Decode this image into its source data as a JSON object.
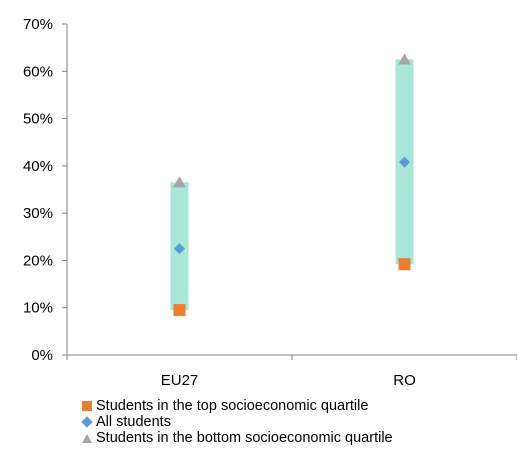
{
  "chart_data": {
    "type": "range",
    "categories": [
      "EU27",
      "RO"
    ],
    "series": [
      {
        "name": "Students in the top socioeconomic quartile",
        "values": [
          9.5,
          19.2
        ],
        "marker": "square",
        "color": "#ED7D31"
      },
      {
        "name": "All students",
        "values": [
          22.5,
          40.8
        ],
        "marker": "diamond",
        "color": "#5B9BD5"
      },
      {
        "name": "Students in the bottom socioeconomic quartile",
        "values": [
          36.5,
          62.5
        ],
        "marker": "triangle",
        "color": "#A5A5A5"
      }
    ],
    "range_bar_color": "#A8E6D7",
    "ylim": [
      0,
      70
    ],
    "yticks": [
      "0%",
      "10%",
      "20%",
      "30%",
      "40%",
      "50%",
      "60%",
      "70%"
    ],
    "ytick_values": [
      0,
      10,
      20,
      30,
      40,
      50,
      60,
      70
    ],
    "legend_position": "bottom",
    "grid": false
  }
}
